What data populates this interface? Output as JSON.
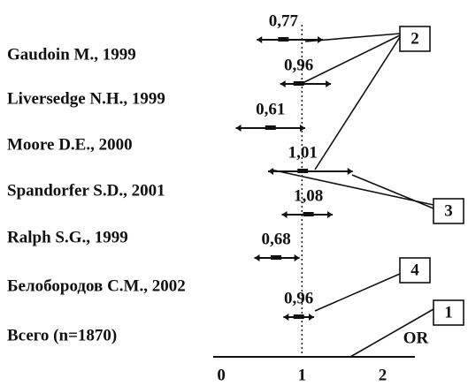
{
  "chart_data": {
    "type": "forest",
    "categories": [
      "Gaudoin M., 1999",
      "Liversedge N.H., 1999",
      "Moore D.E., 2000",
      "Spandorfer S.D., 2001",
      "Ralph S.G., 1999",
      "Белобородов С.М., 2002",
      "Всего (n=1870)"
    ],
    "values": [
      0.77,
      0.96,
      0.61,
      1.01,
      1.08,
      0.68,
      0.96
    ],
    "value_labels": [
      "0,77",
      "0,96",
      "0,61",
      "1,01",
      "1,08",
      "0,68",
      "0,96"
    ],
    "ci_low": [
      0.44,
      0.73,
      0.18,
      0.58,
      0.75,
      0.41,
      0.77
    ],
    "ci_high": [
      1.26,
      1.36,
      1.04,
      1.63,
      1.38,
      0.97,
      1.15
    ],
    "color": "#111111",
    "xlabel": "OR",
    "annotations": [
      "2",
      "3",
      "4",
      "1"
    ],
    "xlim": [
      -0.1,
      2.4
    ],
    "xticks": [
      0,
      1,
      2
    ],
    "reference_line": 1
  }
}
